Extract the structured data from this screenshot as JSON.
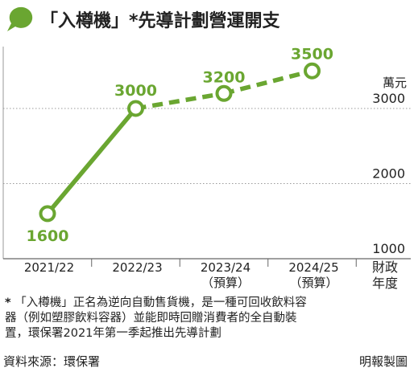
{
  "header": {
    "title": "「入樽機」*先導計劃營運開支"
  },
  "chart_data": {
    "type": "line",
    "categories": [
      "2021/22",
      "2022/23",
      "2023/24",
      "2024/25"
    ],
    "category_sublabels": [
      "",
      "",
      "（預算）",
      "（預算）"
    ],
    "values": [
      1600,
      3000,
      3200,
      3500
    ],
    "data_labels": [
      "1600",
      "3000",
      "3200",
      "3500"
    ],
    "line_styles": [
      "solid",
      "dashed",
      "dashed"
    ],
    "ylabel": "萬元",
    "xlabel": "財政年度",
    "y_ticks": [
      1000,
      2000,
      3000
    ],
    "ylim": [
      1000,
      3500
    ],
    "grid": true,
    "series_color": "#6aa631",
    "marker_fill": "#ffffff"
  },
  "footnote": {
    "marker": "*",
    "lines": [
      "「入樽機」正名為逆向自動售貨機，是一種可回收飲料容",
      "器（例如塑膠飲料容器）並能即時回贈消費者的全自動裝",
      "置，環保署2021年第一季起推出先導計劃"
    ]
  },
  "source": "資料來源：環保署",
  "credit": "明報製圖"
}
